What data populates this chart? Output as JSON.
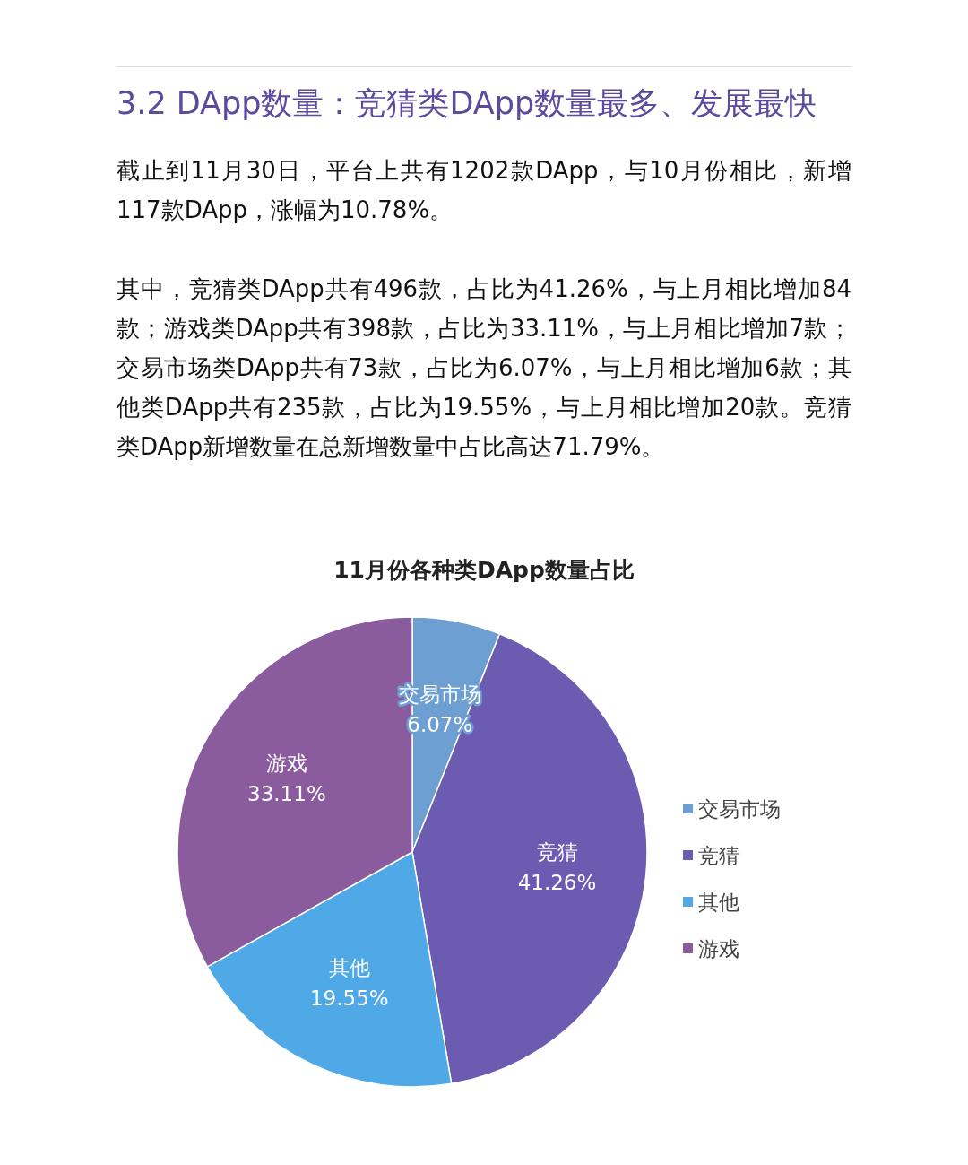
{
  "chart_data": {
    "type": "pie",
    "subtitle": "3.2 DApp数量：竞猜类DApp数量最多、发展最快",
    "annotations": [
      "截止到11月30日，平台上共有1202款DApp，与10月份相比，新增117款DApp，涨幅为10.78%。",
      "其中，竞猜类DApp共有496款，占比为41.26%，与上月相比增加84款；游戏类DApp共有398款，占比为33.11%，与上月相比增加7款；交易市场类DApp共有73款，占比为6.07%，与上月相比增加6款；其他类DApp共有235款，占比为19.55%，与上月相比增加20款。竞猜类DApp新增数量在总新增数量中占比高达71.79%。"
    ],
    "title": "11月份各种类DApp数量占比",
    "categories": [
      "交易市场",
      "竞猜",
      "其他",
      "游戏"
    ],
    "values": [
      6.07,
      41.26,
      19.55,
      33.11
    ],
    "value_labels": [
      "6.07%",
      "41.26%",
      "19.55%",
      "33.11%"
    ],
    "colors": [
      "#6e9fd2",
      "#6b5bb1",
      "#4ea9e6",
      "#8a5b9d"
    ],
    "legend": "right"
  }
}
